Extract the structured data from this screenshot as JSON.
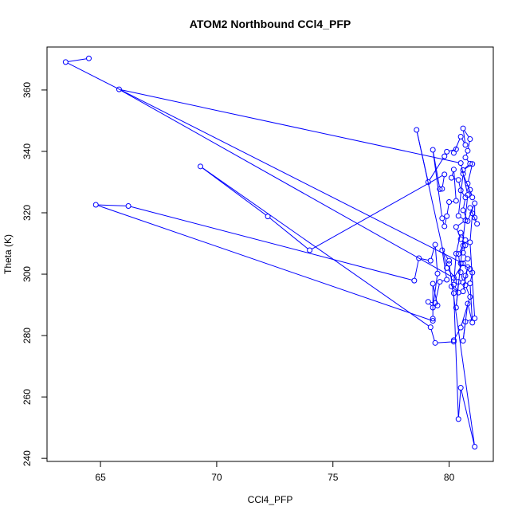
{
  "chart_data": {
    "type": "line",
    "title": "ATOM2 Northbound CCl4_PFP",
    "xlabel": "CCl4_PFP",
    "ylabel": "Theta (K)",
    "xlim": [
      62.7,
      81.9
    ],
    "ylim": [
      239.0,
      374.0
    ],
    "xticks": [
      65,
      70,
      75,
      80
    ],
    "yticks": [
      240,
      260,
      280,
      300,
      320,
      340,
      360
    ],
    "grid": false,
    "colors": {
      "series": "#0000ff"
    },
    "series": [
      {
        "marker": "open-circle",
        "points": [
          [
            64.5,
            370.3
          ],
          [
            63.5,
            369.1
          ],
          [
            80.6,
            303.5
          ],
          [
            80.2,
            298.8
          ],
          [
            65.8,
            360.2
          ],
          [
            80.5,
            336.2
          ],
          [
            80.8,
            325.8
          ],
          [
            80.3,
            289.1
          ],
          [
            80.4,
            297.5
          ],
          [
            79.9,
            302.0
          ],
          [
            78.6,
            347.0
          ],
          [
            79.1,
            330.0
          ],
          [
            79.8,
            338.4
          ],
          [
            79.9,
            339.9
          ],
          [
            80.3,
            340.7
          ],
          [
            80.2,
            339.5
          ],
          [
            80.5,
            344.8
          ],
          [
            80.7,
            342.1
          ],
          [
            80.6,
            347.5
          ],
          [
            80.9,
            344.0
          ],
          [
            80.8,
            340.2
          ],
          [
            80.7,
            338.0
          ],
          [
            80.9,
            336.0
          ],
          [
            80.6,
            333.9
          ],
          [
            81.0,
            335.9
          ],
          [
            80.8,
            329.5
          ],
          [
            80.9,
            327.5
          ],
          [
            81.0,
            325.0
          ],
          [
            80.6,
            332.7
          ],
          [
            80.4,
            319.0
          ],
          [
            80.7,
            317.5
          ],
          [
            80.3,
            315.4
          ],
          [
            80.5,
            311.4
          ],
          [
            80.7,
            309.4
          ],
          [
            80.6,
            307.0
          ],
          [
            80.8,
            305.0
          ],
          [
            80.5,
            303.5
          ],
          [
            80.9,
            301.7
          ],
          [
            81.0,
            300.5
          ],
          [
            80.9,
            297.0
          ],
          [
            81.0,
            284.2
          ],
          [
            80.8,
            290.4
          ],
          [
            80.6,
            278.3
          ],
          [
            80.7,
            284.5
          ],
          [
            81.1,
            285.6
          ],
          [
            80.9,
            310.4
          ],
          [
            81.0,
            319.8
          ],
          [
            80.9,
            321.6
          ],
          [
            81.2,
            316.4
          ],
          [
            81.1,
            318.4
          ],
          [
            81.1,
            323.1
          ],
          [
            80.8,
            317.3
          ],
          [
            80.6,
            320.8
          ],
          [
            80.7,
            325.0
          ],
          [
            80.5,
            327.3
          ],
          [
            80.4,
            330.7
          ],
          [
            80.1,
            331.4
          ],
          [
            80.2,
            334.1
          ],
          [
            80.3,
            323.9
          ],
          [
            80.0,
            323.5
          ],
          [
            79.9,
            318.9
          ],
          [
            79.8,
            315.6
          ],
          [
            79.7,
            318.2
          ],
          [
            79.3,
            340.5
          ],
          [
            79.6,
            327.7
          ],
          [
            79.7,
            327.8
          ],
          [
            79.8,
            332.5
          ],
          [
            74.0,
            307.8
          ],
          [
            72.2,
            318.8
          ],
          [
            69.3,
            335.1
          ],
          [
            79.2,
            282.7
          ],
          [
            79.4,
            277.6
          ],
          [
            80.2,
            278.0
          ],
          [
            80.2,
            278.5
          ],
          [
            80.5,
            282.6
          ],
          [
            80.9,
            292.6
          ],
          [
            80.7,
            296.4
          ],
          [
            80.6,
            294.4
          ],
          [
            80.8,
            302.3
          ],
          [
            80.7,
            299.5
          ],
          [
            80.6,
            297.3
          ],
          [
            80.5,
            300.6
          ],
          [
            80.4,
            306.6
          ],
          [
            80.6,
            309.3
          ],
          [
            80.7,
            311.1
          ],
          [
            80.5,
            313.5
          ],
          [
            80.3,
            306.7
          ],
          [
            80.2,
            296.6
          ],
          [
            80.4,
            294.0
          ],
          [
            80.1,
            296.0
          ],
          [
            80.2,
            293.8
          ],
          [
            80.4,
            252.8
          ],
          [
            80.5,
            263.0
          ],
          [
            81.1,
            243.8
          ],
          [
            80.0,
            303.4
          ],
          [
            80.0,
            304.4
          ],
          [
            79.7,
            307.8
          ],
          [
            79.9,
            298.2
          ],
          [
            79.6,
            297.5
          ],
          [
            79.4,
            290.6
          ],
          [
            79.1,
            291.0
          ],
          [
            79.3,
            289.1
          ],
          [
            79.5,
            300.2
          ],
          [
            79.4,
            309.6
          ],
          [
            79.2,
            304.4
          ],
          [
            78.7,
            305.2
          ],
          [
            78.5,
            297.9
          ],
          [
            66.2,
            322.2
          ],
          [
            64.8,
            322.6
          ],
          [
            79.3,
            284.8
          ],
          [
            79.3,
            285.5
          ],
          [
            79.3,
            296.9
          ],
          [
            79.5,
            289.8
          ]
        ]
      }
    ]
  }
}
